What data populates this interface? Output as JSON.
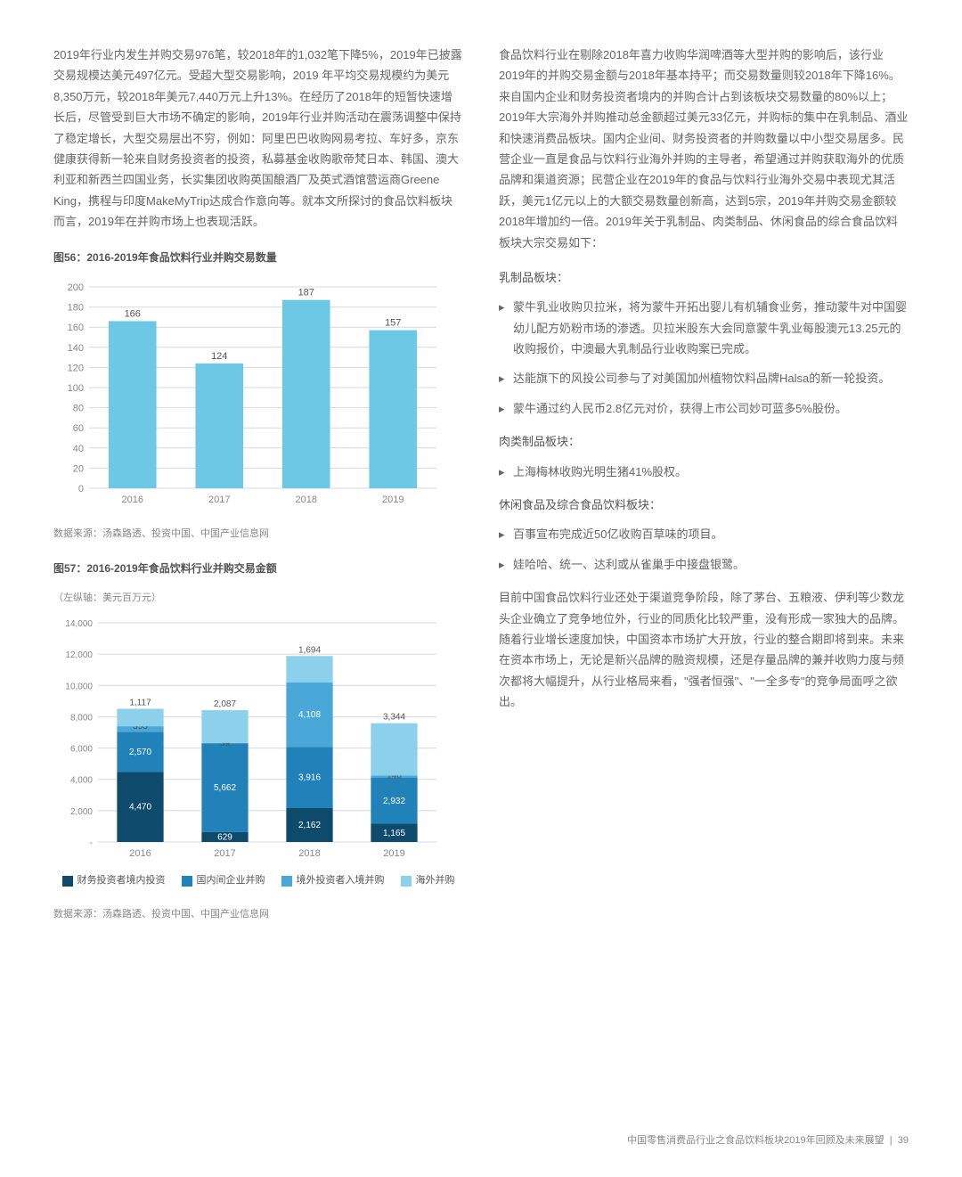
{
  "leftColumn": {
    "para1": "2019年行业内发生并购交易976笔，较2018年的1,032笔下降5%，2019年已披露交易规模达美元497亿元。受超大型交易影响，2019 年平均交易规模约为美元8,350万元，较2018年美元7,440万元上升13%。在经历了2018年的短暂快速增长后，尽管受到巨大市场不确定的影响，2019年行业并购活动在震荡调整中保持了稳定增长，大型交易层出不穷，例如：阿里巴巴收购网易考拉、车好多，京东健康获得新一轮来自财务投资者的投资，私募基金收购歌帝梵日本、韩国、澳大利亚和新西兰四国业务，长实集团收购英国酿酒厂及英式酒馆营运商Greene King，携程与印度MakeMyTrip达成合作意向等。就本文所探讨的食品饮料板块而言，2019年在并购市场上也表现活跃。"
  },
  "chart56": {
    "title": "图56：2016-2019年食品饮料行业并购交易数量",
    "type": "bar",
    "categories": [
      "2016",
      "2017",
      "2018",
      "2019"
    ],
    "values": [
      166,
      124,
      187,
      157
    ],
    "bar_color": "#6dc8e6",
    "ylim": [
      0,
      200
    ],
    "ytick_step": 20,
    "yticks": [
      0,
      20,
      40,
      60,
      80,
      100,
      120,
      140,
      160,
      180,
      200
    ],
    "grid_color": "#d9d9d9",
    "label_color": "#888888",
    "value_label_color": "#555555",
    "label_fontsize": 11,
    "background_color": "#ffffff",
    "source": "数据来源：汤森路透、投资中国、中国产业信息网"
  },
  "chart57": {
    "title": "图57：2016-2019年食品饮料行业并购交易金额",
    "subtitle": "（左纵轴：美元百万元）",
    "type": "stacked-bar",
    "categories": [
      "2016",
      "2017",
      "2018",
      "2019"
    ],
    "series": [
      {
        "name": "财务投资者境内投资",
        "color": "#0e4a6b",
        "values": [
          4470,
          629,
          2162,
          1165
        ]
      },
      {
        "name": "国内间企业并购",
        "color": "#2082b9",
        "values": [
          2570,
          5662,
          3916,
          2932
        ]
      },
      {
        "name": "境外投资者入境并购",
        "color": "#4aa8d8",
        "values": [
          353,
          39,
          4108,
          146
        ]
      },
      {
        "name": "海外并购",
        "color": "#8dd0eb",
        "values": [
          1117,
          2087,
          1694,
          3344
        ]
      }
    ],
    "ylim": [
      0,
      14000
    ],
    "ytick_step": 2000,
    "yticks": [
      0,
      2000,
      4000,
      6000,
      8000,
      10000,
      12000,
      14000
    ],
    "ytick_labels": [
      "-",
      "2,000",
      "4,000",
      "6,000",
      "8,000",
      "10,000",
      "12,000",
      "14,000"
    ],
    "grid_color": "#d9d9d9",
    "label_color": "#888888",
    "value_label_color": "#ffffff",
    "top_label_color": "#555555",
    "label_fontsize": 10,
    "background_color": "#ffffff",
    "source": "数据来源：汤森路透、投资中国、中国产业信息网"
  },
  "rightColumn": {
    "para1": "食品饮料行业在剔除2018年喜力收购华润啤酒等大型并购的影响后，该行业2019年的并购交易金额与2018年基本持平；而交易数量则较2018年下降16%。来自国内企业和财务投资者境内的并购合计占到该板块交易数量的80%以上；2019年大宗海外并购推动总金额超过美元33亿元，并购标的集中在乳制品、酒业和快速消费品板块。国内企业间、财务投资者的并购数量以中小型交易居多。民营企业一直是食品与饮料行业海外并购的主导者，希望通过并购获取海外的优质品牌和渠道资源；民营企业在2019年的食品与饮料行业海外交易中表现尤其活跃，美元1亿元以上的大额交易数量创新高，达到5宗，2019年并购交易金额较2018年增加约一倍。2019年关于乳制品、肉类制品、休闲食品的综合食品饮料板块大宗交易如下：",
    "section1_label": "乳制品板块：",
    "section1": [
      "蒙牛乳业收购贝拉米，将为蒙牛开拓出婴儿有机辅食业务，推动蒙牛对中国婴幼儿配方奶粉市场的渗透。贝拉米股东大会同意蒙牛乳业每股澳元13.25元的收购报价，中澳最大乳制品行业收购案已完成。",
      "达能旗下的风投公司参与了对美国加州植物饮料品牌Halsa的新一轮投资。",
      "蒙牛通过约人民币2.8亿元对价，获得上市公司妙可蓝多5%股份。"
    ],
    "section2_label": "肉类制品板块：",
    "section2": [
      "上海梅林收购光明生猪41%股权。"
    ],
    "section3_label": "休闲食品及综合食品饮料板块：",
    "section3": [
      "百事宣布完成近50亿收购百草味的项目。",
      "娃哈哈、统一、达利或从雀巢手中接盘银鹭。"
    ],
    "para2": "目前中国食品饮料行业还处于渠道竞争阶段，除了茅台、五粮液、伊利等少数龙头企业确立了竞争地位外，行业的同质化比较严重，没有形成一家独大的品牌。随着行业增长速度加快，中国资本市场扩大开放，行业的整合期即将到来。未来在资本市场上，无论是新兴品牌的融资规模，还是存量品牌的兼并收购力度与频次都将大幅提升，从行业格局来看，\"强者恒强\"、\"一全多专\"的竞争局面呼之欲出。"
  },
  "footer": {
    "text": "中国零售消费品行业之食品饮料板块2019年回顾及未来展望",
    "page": "39"
  }
}
